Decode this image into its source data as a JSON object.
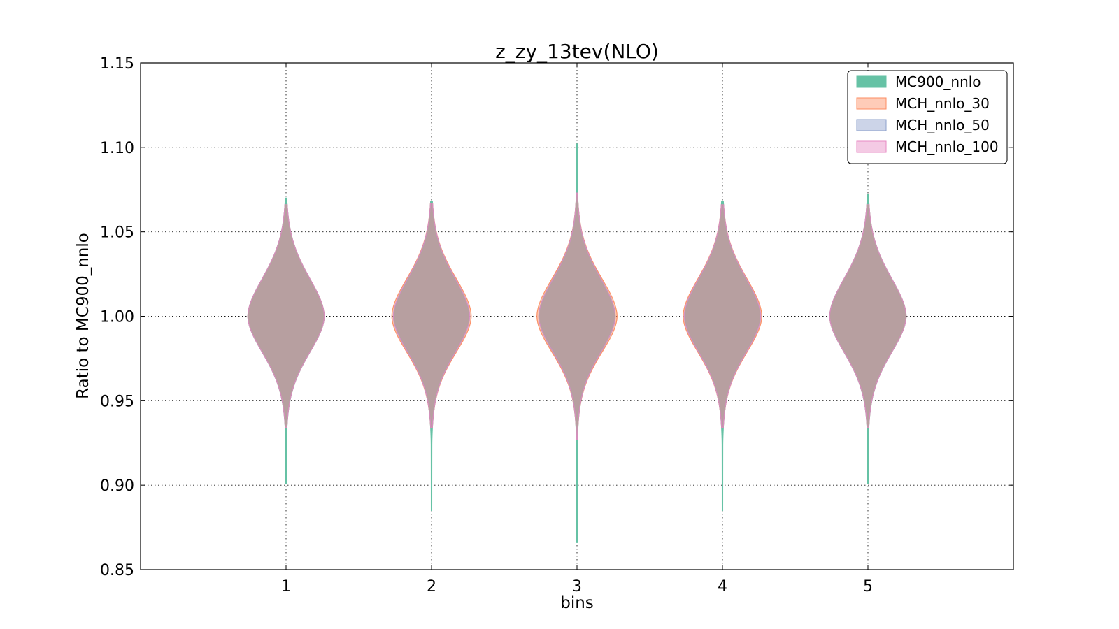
{
  "chart_data": {
    "type": "violin",
    "title": "z_zy_13tev(NLO)",
    "xlabel": "bins",
    "ylabel": "Ratio to MC900_nnlo",
    "categories": [
      "1",
      "2",
      "3",
      "4",
      "5"
    ],
    "ylim": [
      0.85,
      1.15
    ],
    "yticks": [
      "0.85",
      "0.90",
      "0.95",
      "1.00",
      "1.05",
      "1.10",
      "1.15"
    ],
    "grid": true,
    "legend_position": "top-right",
    "series": [
      {
        "name": "MC900_nnlo",
        "fill": "#66c2a5",
        "stroke": "#66c2a5",
        "opacity": 1.0,
        "ranges": [
          [
            0.901,
            1.07
          ],
          [
            0.885,
            1.068
          ],
          [
            0.866,
            1.102
          ],
          [
            0.885,
            1.068
          ],
          [
            0.901,
            1.072
          ]
        ],
        "relative_half_width": [
          1.0,
          0.98,
          1.0,
          0.98,
          1.0
        ]
      },
      {
        "name": "MCH_nnlo_30",
        "fill": "#fc8d62",
        "stroke": "#fc8d62",
        "opacity": 0.5,
        "ranges": [
          [
            0.934,
            1.066
          ],
          [
            0.934,
            1.067
          ],
          [
            0.927,
            1.073
          ],
          [
            0.934,
            1.066
          ],
          [
            0.934,
            1.066
          ]
        ],
        "relative_half_width": [
          1.0,
          1.04,
          1.05,
          1.03,
          1.0
        ]
      },
      {
        "name": "MCH_nnlo_50",
        "fill": "#8da0cb",
        "stroke": "#8da0cb",
        "opacity": 0.25,
        "ranges": [
          [
            0.934,
            1.066
          ],
          [
            0.934,
            1.067
          ],
          [
            0.927,
            1.073
          ],
          [
            0.934,
            1.066
          ],
          [
            0.934,
            1.066
          ]
        ],
        "relative_half_width": [
          1.0,
          1.0,
          1.0,
          1.0,
          1.0
        ]
      },
      {
        "name": "MCH_nnlo_100",
        "fill": "#e78ac3",
        "stroke": "#e78ac3",
        "opacity": 0.25,
        "ranges": [
          [
            0.934,
            1.066
          ],
          [
            0.934,
            1.067
          ],
          [
            0.927,
            1.073
          ],
          [
            0.934,
            1.066
          ],
          [
            0.934,
            1.066
          ]
        ],
        "relative_half_width": [
          1.0,
          1.0,
          1.0,
          1.0,
          1.0
        ]
      }
    ]
  }
}
